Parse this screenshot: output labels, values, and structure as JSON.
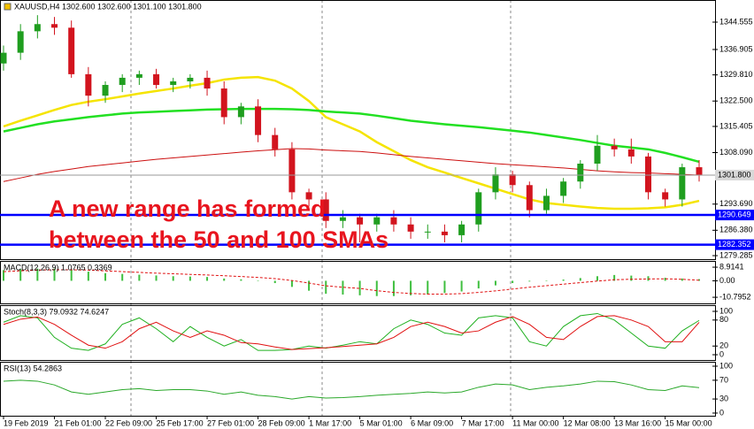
{
  "chart_data": [
    {
      "type": "candlestick",
      "title": "XAUUSD,H4  1302.600 1302.600 1301.100 1301.800",
      "categories": [
        "19 Feb 2019",
        null,
        null,
        "21 Feb 01:00",
        null,
        null,
        "22 Feb 09:00",
        null,
        null,
        "25 Feb 17:00",
        null,
        null,
        "27 Feb 01:00",
        null,
        null,
        "28 Feb 09:00",
        null,
        null,
        "1 Mar 17:00",
        null,
        null,
        "5 Mar 01:00",
        null,
        null,
        "6 Mar 09:00",
        null,
        null,
        "7 Mar 17:00",
        null,
        null,
        "11 Mar 00:00",
        null,
        null,
        "12 Mar 08:00",
        null,
        null,
        "13 Mar 16:00",
        null,
        null,
        "15 Mar 00:00",
        null,
        null
      ],
      "open": [
        1333,
        1336,
        1342,
        1344,
        1343,
        1330,
        1324,
        1327,
        1329,
        1330,
        1327,
        1328,
        1329,
        1326,
        1318,
        1321,
        1313,
        1309,
        1297,
        1295,
        1289,
        1290,
        1288,
        1290,
        1288,
        1286,
        1286,
        1285,
        1288,
        1297,
        1302,
        1299,
        1292,
        1296,
        1300,
        1305,
        1310,
        1309,
        1307,
        1297,
        1295,
        1304
      ],
      "high": [
        1338,
        1344,
        1346.5,
        1346,
        1345,
        1332,
        1328,
        1330,
        1331,
        1331.5,
        1329,
        1330,
        1331,
        1328,
        1322,
        1323,
        1315,
        1311,
        1298,
        1297,
        1292,
        1291,
        1291,
        1292,
        1290,
        1288,
        1288,
        1289,
        1298,
        1304,
        1303,
        1300,
        1298,
        1301,
        1306,
        1313,
        1312,
        1312,
        1308,
        1298,
        1305,
        1306
      ],
      "low": [
        1331,
        1334,
        1340,
        1341,
        1329,
        1321,
        1322,
        1325,
        1327,
        1326,
        1325,
        1326,
        1324,
        1316,
        1316,
        1311,
        1307,
        1295,
        1293,
        1287,
        1287,
        1283,
        1286,
        1286,
        1284,
        1284,
        1283,
        1283,
        1286,
        1295,
        1297,
        1290,
        1291,
        1294,
        1298,
        1303,
        1307,
        1305,
        1295,
        1293,
        1293,
        1300
      ],
      "close": [
        1336,
        1342,
        1344,
        1343,
        1330,
        1324,
        1327,
        1329,
        1330,
        1327,
        1328,
        1329,
        1326,
        1318,
        1321,
        1313,
        1309,
        1297,
        1295,
        1289,
        1290,
        1288,
        1290,
        1288,
        1286,
        1286,
        1285,
        1288,
        1297,
        1302,
        1299,
        1292,
        1296,
        1300,
        1305,
        1310,
        1309,
        1307,
        1297,
        1295,
        1304,
        1301.8
      ],
      "up_color": "#1f9e1f",
      "down_color": "#d2141e",
      "lines": [
        {
          "color": "#f5e400",
          "values": [
            1315.4,
            1317,
            1318.5,
            1320,
            1321.4,
            1322.3,
            1323,
            1323.8,
            1324.6,
            1325.3,
            1326,
            1326.8,
            1327.5,
            1328.5,
            1329,
            1329.2,
            1328.2,
            1326,
            1322.5,
            1318,
            1316,
            1314,
            1311,
            1308.5,
            1306,
            1304,
            1302.5,
            1301,
            1299.5,
            1298,
            1296.5,
            1295,
            1294,
            1293.5,
            1293,
            1292.6,
            1292.4,
            1292.4,
            1292.5,
            1292.8,
            1293.5,
            1294.6
          ]
        },
        {
          "color": "#22e022",
          "values": [
            1314,
            1315,
            1316,
            1316.8,
            1317.4,
            1318,
            1318.5,
            1319,
            1319.3,
            1319.5,
            1319.7,
            1319.9,
            1320.1,
            1320.2,
            1320.3,
            1320.3,
            1320.3,
            1320.2,
            1320,
            1319.6,
            1319.3,
            1319,
            1318.4,
            1317.7,
            1317,
            1316.5,
            1316,
            1315.6,
            1315.2,
            1314.7,
            1314.2,
            1313.7,
            1313,
            1312.3,
            1311.6,
            1310.8,
            1310,
            1309.5,
            1309,
            1308,
            1306.8,
            1305.5
          ]
        },
        {
          "color": "#cc1010",
          "values": [
            1300,
            1301,
            1302,
            1302.8,
            1303.5,
            1304.2,
            1304.7,
            1305.2,
            1305.7,
            1306.2,
            1306.6,
            1307,
            1307.4,
            1307.8,
            1308.2,
            1308.6,
            1308.9,
            1309.2,
            1309.1,
            1308.8,
            1308.6,
            1308.4,
            1308,
            1307.5,
            1307,
            1306.6,
            1306.2,
            1305.8,
            1305.4,
            1305,
            1304.7,
            1304.4,
            1304.1,
            1303.8,
            1303.4,
            1303,
            1302.7,
            1302.5,
            1302.4,
            1302.2,
            1302,
            1301.8
          ]
        }
      ],
      "ylim": [
        1278.3,
        1350.74
      ],
      "yticks": [
        1344.555,
        1336.905,
        {
          "value": 1329.81,
          "label": "1329.810"
        },
        {
          "value": 1322.5,
          "label": "1322.500"
        },
        1315.405,
        {
          "value": 1308.09,
          "label": "1308.090"
        },
        {
          "value": 1293.69,
          "label": "1293.690"
        },
        {
          "value": 1286.38,
          "label": "1286.380"
        },
        1279.285
      ],
      "hlines": [
        {
          "value": 1290.649,
          "color": "#0000ff"
        },
        {
          "value": 1282.352,
          "color": "#0000ff"
        }
      ],
      "last_price": {
        "value": 1301.8,
        "label": "1301.800"
      },
      "annotation": [
        "A new range has formed",
        "between the 50 and 100 SMAs"
      ],
      "annotation_color": "#e8141e"
    },
    {
      "type": "histogram",
      "title": "MACD(12,26,9) 1.0765 0.3369",
      "values": [
        7,
        7.5,
        8,
        8,
        7,
        6,
        5,
        4.5,
        4,
        3.5,
        3,
        2.8,
        2.5,
        1.5,
        1,
        0,
        -1.5,
        -4,
        -6.5,
        -8.5,
        -9,
        -9.5,
        -10,
        -10,
        -9.5,
        -9,
        -8,
        -7,
        -5,
        -3,
        -1.5,
        -0.5,
        0,
        0.8,
        1.8,
        3,
        3.8,
        3.4,
        3,
        2,
        1.5,
        1.0765
      ],
      "signal": [
        6,
        6.5,
        7,
        7.2,
        7.2,
        7,
        6.5,
        6,
        5.5,
        5,
        4.6,
        4.2,
        3.8,
        3.3,
        2.8,
        2.2,
        1.4,
        0.2,
        -1.5,
        -3.3,
        -4.2,
        -5,
        -6.5,
        -7.6,
        -8.3,
        -8.7,
        -8.7,
        -8.4,
        -7.6,
        -6.6,
        -5.4,
        -4.2,
        -3.2,
        -2.2,
        -1.2,
        -0.2,
        0.7,
        1,
        1.2,
        1.3,
        1,
        0.3369
      ],
      "color": "#3fbf3f",
      "signal_color": "#e01010",
      "ylim": [
        -14.8,
        13
      ],
      "yticks": [
        8.9141,
        {
          "value": 0,
          "label": "0.00"
        },
        -10.7952
      ]
    },
    {
      "type": "line",
      "title": "Stoch(8,3,3) 79.0932 74.6247",
      "series": [
        {
          "color": "#1fb01f",
          "values": [
            75,
            90,
            85,
            40,
            15,
            10,
            25,
            70,
            85,
            60,
            30,
            65,
            40,
            20,
            35,
            10,
            10,
            12,
            20,
            15,
            22,
            30,
            25,
            60,
            80,
            70,
            50,
            45,
            85,
            90,
            85,
            30,
            20,
            65,
            90,
            95,
            80,
            50,
            20,
            15,
            55,
            79.0932
          ]
        },
        {
          "color": "#e01010",
          "values": [
            70,
            82,
            87,
            70,
            45,
            22,
            15,
            30,
            60,
            75,
            55,
            40,
            55,
            45,
            28,
            25,
            18,
            12,
            14,
            16,
            19,
            22,
            25,
            40,
            65,
            75,
            65,
            50,
            55,
            75,
            88,
            70,
            40,
            35,
            65,
            88,
            90,
            80,
            65,
            30,
            30,
            74.6247
          ]
        }
      ],
      "ylim": [
        -12.2,
        114.3
      ],
      "yticks": [
        100,
        80,
        20,
        0
      ]
    },
    {
      "type": "line",
      "title": "RSI(13) 54.2863",
      "series": [
        {
          "color": "#2aa82a",
          "values": [
            68,
            70,
            68,
            60,
            45,
            40,
            45,
            50,
            52,
            48,
            50,
            50,
            47,
            40,
            45,
            38,
            35,
            30,
            35,
            32,
            33,
            35,
            38,
            40,
            42,
            45,
            43,
            45,
            55,
            62,
            60,
            50,
            55,
            58,
            62,
            68,
            67,
            60,
            50,
            48,
            58,
            54.2863
          ]
        }
      ],
      "ylim": [
        -5.7,
        109.4
      ],
      "yticks": [
        100,
        70,
        30,
        0
      ]
    }
  ]
}
